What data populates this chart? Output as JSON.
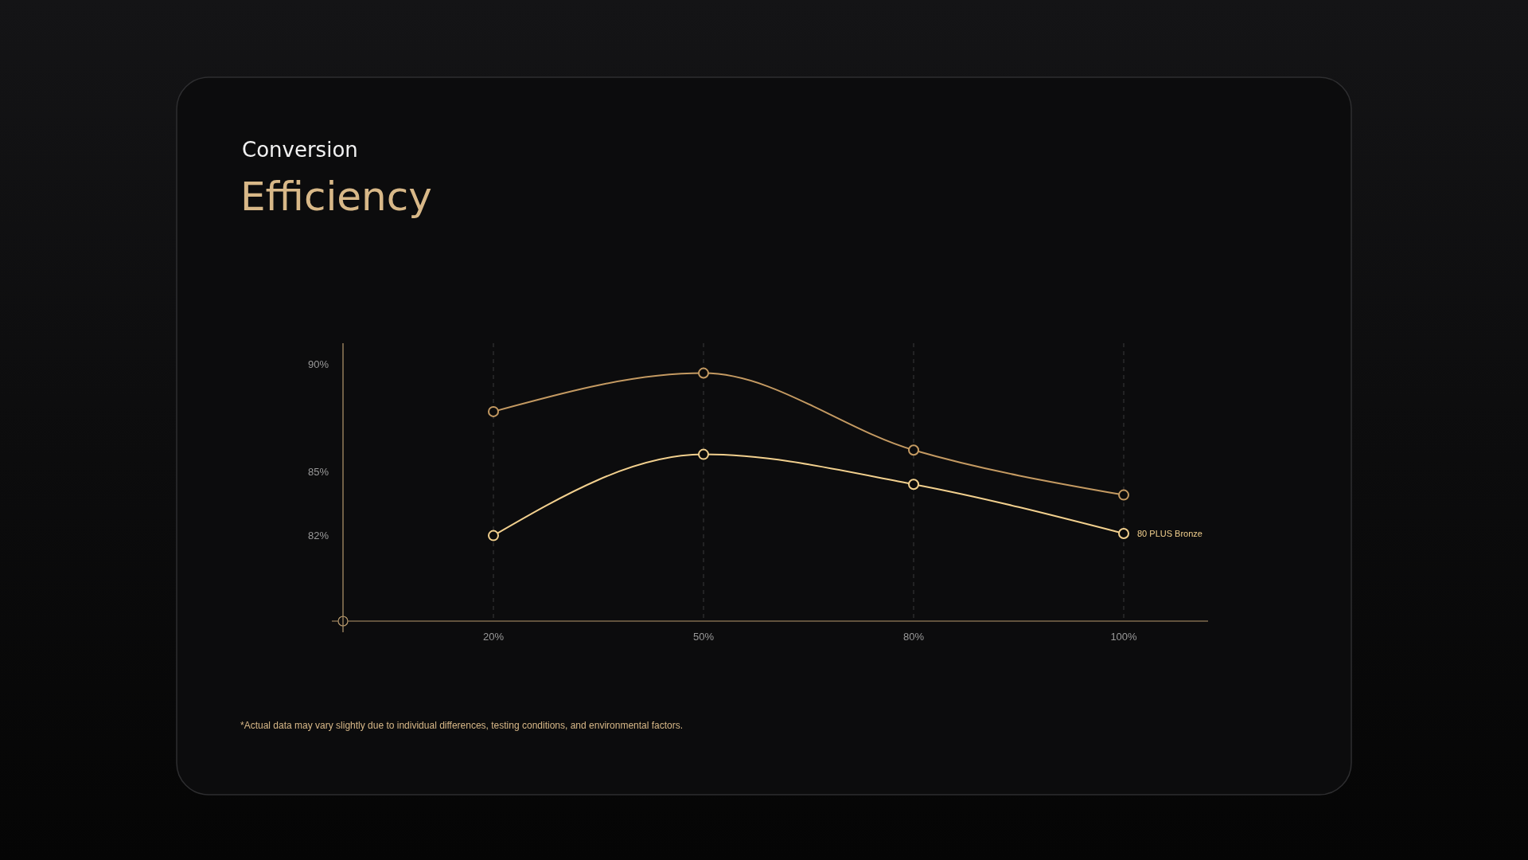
{
  "chart_data": {
    "type": "line",
    "subtitle": "Conversion",
    "title": "Efficiency",
    "categories": [
      "20%",
      "50%",
      "80%",
      "100%"
    ],
    "series": [
      {
        "color": "#c49a62",
        "values": [
          87.8,
          89.6,
          86.0,
          83.9
        ]
      },
      {
        "name": "80 PLUS Bronze",
        "color": "#f2d08e",
        "values": [
          82.0,
          85.8,
          84.4,
          82.1
        ]
      }
    ],
    "ylim": [
      78,
      91
    ],
    "yticks": [
      {
        "value": 82,
        "label": "82%"
      },
      {
        "value": 85,
        "label": "85%"
      },
      {
        "value": 90,
        "label": "90%"
      }
    ],
    "grid": "x",
    "marker": "circle",
    "line_style": "solid",
    "annotations": [
      "*Actual data may vary slightly due to individual differences, testing conditions, and environmental factors."
    ]
  }
}
